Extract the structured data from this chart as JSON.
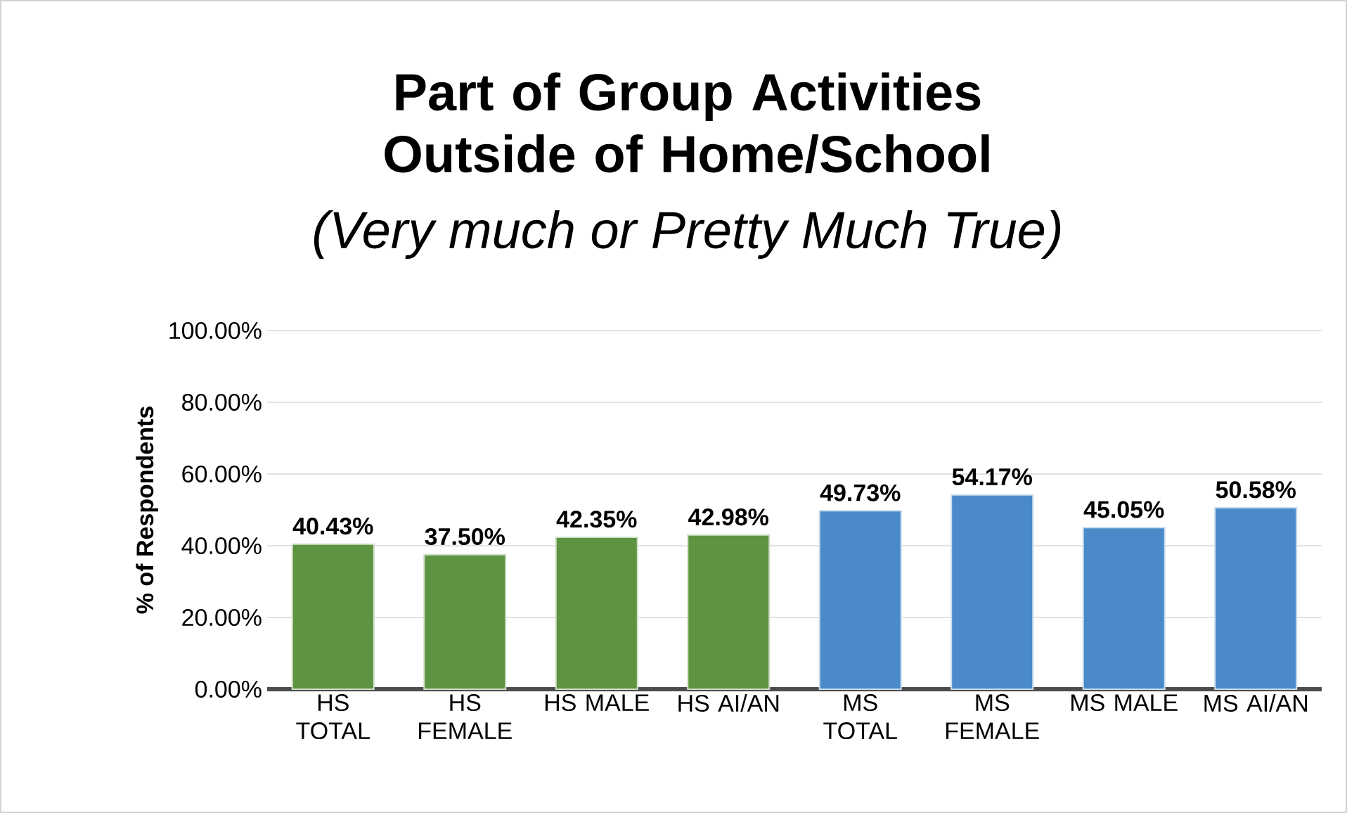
{
  "chart_data": {
    "type": "bar",
    "title": "Part of Group Activities Outside of Home/School",
    "subtitle": "*(Very much or Pretty Much True)*",
    "ylabel": "% of Respondents",
    "categories": [
      "HS TOTAL",
      "HS FEMALE",
      "HS MALE",
      "HS AI/AN",
      "MS TOTAL",
      "MS FEMALE",
      "MS MALE",
      "MS AI/AN"
    ],
    "values": [
      40.43,
      37.5,
      42.35,
      42.98,
      49.73,
      54.17,
      45.05,
      50.58
    ],
    "value_labels": [
      "40.43%",
      "37.50%",
      "42.35%",
      "42.98%",
      "49.73%",
      "54.17%",
      "45.05%",
      "50.58%"
    ],
    "colors": [
      "#5e9441",
      "#5e9441",
      "#5e9441",
      "#5e9441",
      "#4a8ac9",
      "#4a8ac9",
      "#4a8ac9",
      "#4a8ac9"
    ],
    "ylim": [
      0,
      100
    ],
    "yticks": [
      {
        "value": 0,
        "label": "0.00%"
      },
      {
        "value": 20,
        "label": "20.00%"
      },
      {
        "value": 40,
        "label": "40.00%"
      },
      {
        "value": 60,
        "label": "60.00%"
      },
      {
        "value": 80,
        "label": "80.00%"
      },
      {
        "value": 100,
        "label": "100.00%"
      }
    ],
    "grid": "y"
  }
}
